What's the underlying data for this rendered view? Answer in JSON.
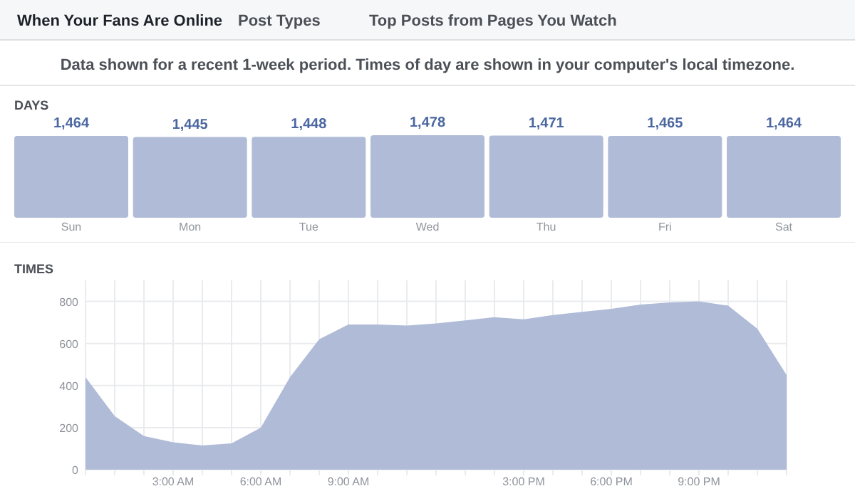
{
  "chart_data": [
    {
      "type": "bar",
      "title": "DAYS",
      "categories": [
        "Sun",
        "Mon",
        "Tue",
        "Wed",
        "Thu",
        "Fri",
        "Sat"
      ],
      "values": [
        1464,
        1445,
        1448,
        1478,
        1471,
        1465,
        1464
      ],
      "color": "#b0bcd7",
      "data_labels": true,
      "value_labels": [
        "1,464",
        "1,445",
        "1,448",
        "1,478",
        "1,471",
        "1,465",
        "1,464"
      ],
      "annotations": [
        "When Your Fans Are Online",
        "Post Types",
        "Top Posts from Pages You Watch",
        "Data shown for a recent 1-week period. Times of day are shown in your computer's local timezone."
      ]
    },
    {
      "type": "area",
      "title": "TIMES",
      "x": [
        0,
        1,
        2,
        3,
        4,
        5,
        6,
        7,
        8,
        9,
        10,
        11,
        12,
        13,
        14,
        15,
        16,
        17,
        18,
        19,
        20,
        21,
        22,
        23,
        24
      ],
      "values": [
        440,
        255,
        160,
        130,
        115,
        125,
        200,
        440,
        620,
        690,
        690,
        685,
        695,
        710,
        725,
        715,
        735,
        750,
        765,
        785,
        795,
        800,
        780,
        670,
        450
      ],
      "color": "#b0bcd7",
      "xlim": [
        0,
        24
      ],
      "xticks": [
        {
          "value": 0,
          "label": null
        },
        {
          "value": 1,
          "label": null
        },
        {
          "value": 2,
          "label": null
        },
        {
          "value": 3,
          "label": "3:00 AM"
        },
        {
          "value": 4,
          "label": null
        },
        {
          "value": 5,
          "label": null
        },
        {
          "value": 6,
          "label": "6:00 AM"
        },
        {
          "value": 7,
          "label": null
        },
        {
          "value": 8,
          "label": null
        },
        {
          "value": 9,
          "label": "9:00 AM"
        },
        {
          "value": 10,
          "label": null
        },
        {
          "value": 11,
          "label": null
        },
        {
          "value": 12,
          "label": null
        },
        {
          "value": 13,
          "label": null
        },
        {
          "value": 14,
          "label": null
        },
        {
          "value": 15,
          "label": "3:00 PM"
        },
        {
          "value": 16,
          "label": null
        },
        {
          "value": 17,
          "label": null
        },
        {
          "value": 18,
          "label": "6:00 PM"
        },
        {
          "value": 19,
          "label": null
        },
        {
          "value": 20,
          "label": null
        },
        {
          "value": 21,
          "label": "9:00 PM"
        },
        {
          "value": 22,
          "label": null
        },
        {
          "value": 23,
          "label": null
        },
        {
          "value": 24,
          "label": null
        }
      ],
      "ylim": [
        0,
        900
      ],
      "yticks": [
        0,
        200,
        400,
        600,
        800
      ],
      "grid": true
    }
  ]
}
